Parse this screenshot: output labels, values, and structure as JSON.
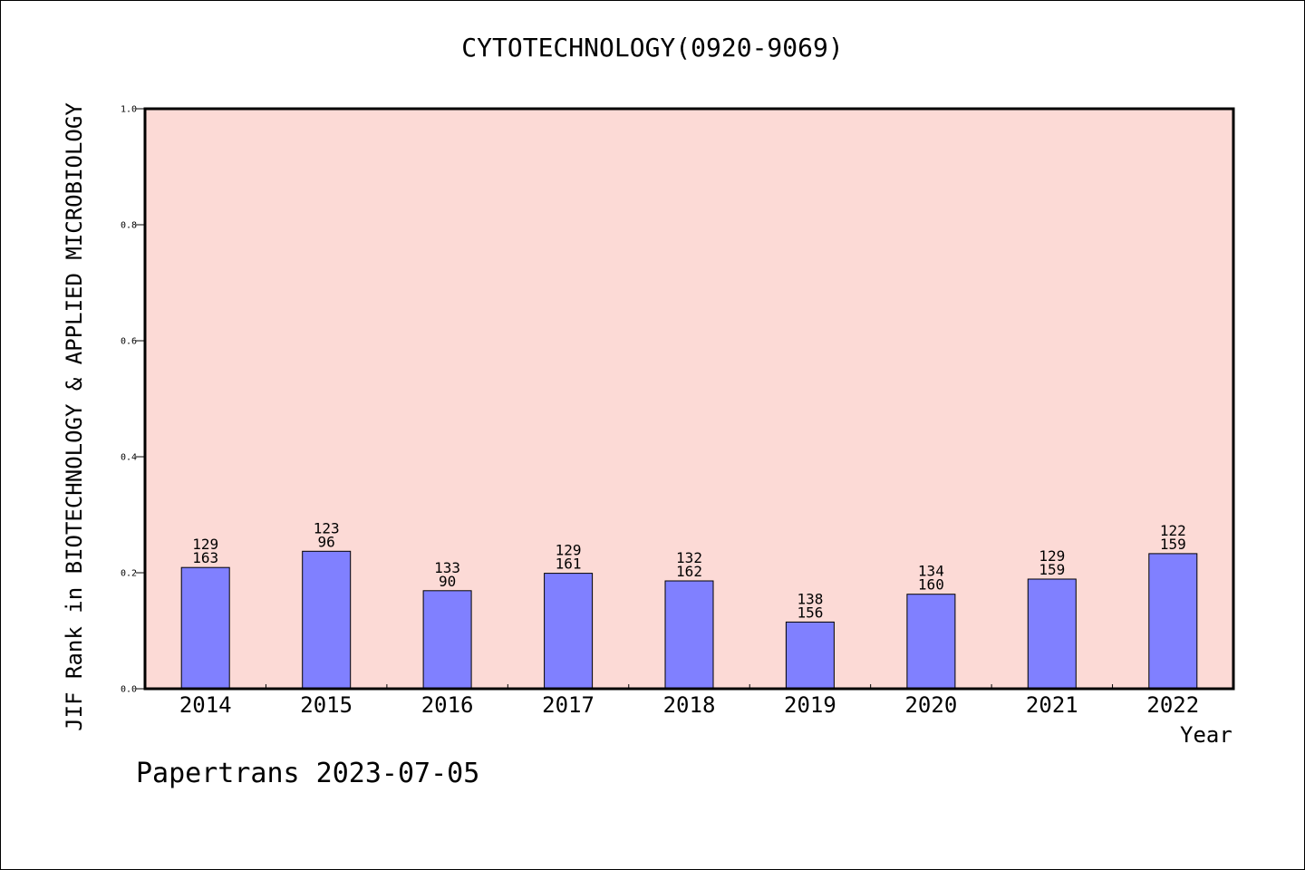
{
  "chart_data": {
    "type": "bar",
    "title": "CYTOTECHNOLOGY(0920-9069)",
    "xlabel": "Year",
    "ylabel": "JIF Rank in BIOTECHNOLOGY & APPLIED MICROBIOLOGY",
    "ylim": [
      0,
      1.0
    ],
    "yticks": [
      "0.0",
      "0.2",
      "0.4",
      "0.6",
      "0.8",
      "1.0"
    ],
    "categories": [
      "2014",
      "2015",
      "2016",
      "2017",
      "2018",
      "2019",
      "2020",
      "2021",
      "2022"
    ],
    "values": [
      0.209,
      0.237,
      0.169,
      0.199,
      0.186,
      0.115,
      0.163,
      0.189,
      0.233
    ],
    "labels_top": [
      "129",
      "123",
      "133",
      "129",
      "132",
      "138",
      "134",
      "129",
      "122"
    ],
    "labels_bottom": [
      "163",
      "96",
      "90",
      "161",
      "162",
      "156",
      "160",
      "159",
      "159"
    ],
    "grid": false,
    "colors": {
      "plot_background": "#fcdad6",
      "bar_fill": "#8080ff",
      "bar_stroke": "#000000"
    }
  },
  "footer": "Papertrans 2023-07-05"
}
